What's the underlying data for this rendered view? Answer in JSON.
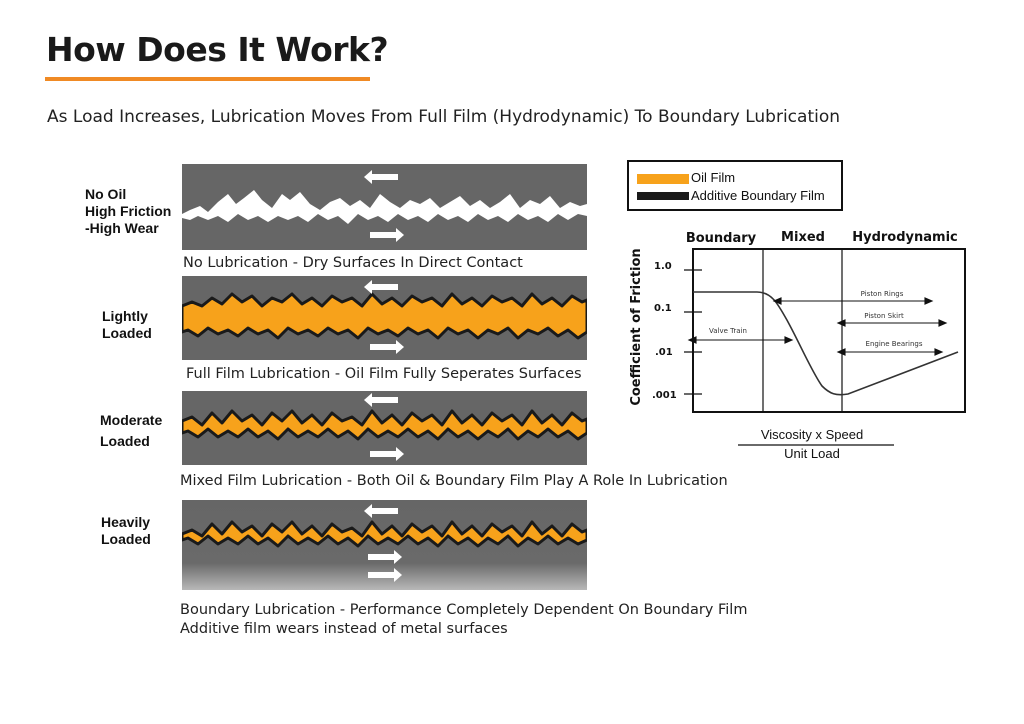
{
  "heading": {
    "title": "How Does It Work?",
    "subtitle": "As Load Increases, Lubrication Moves From Full Film (Hydrodynamic) To Boundary Lubrication",
    "accent_color": "#f08a24"
  },
  "regimes": [
    {
      "label_lines": [
        "No Oil",
        "High Friction",
        "-High Wear"
      ],
      "caption": "No Lubrication - Dry Surfaces In Direct Contact"
    },
    {
      "label_lines": [
        "Lightly",
        "Loaded"
      ],
      "caption": "Full Film Lubrication - Oil Film Fully Seperates Surfaces"
    },
    {
      "label_lines": [
        "Moderate",
        "Loaded"
      ],
      "caption": "Mixed Film Lubrication - Both Oil & Boundary Film Play A Role In Lubrication"
    },
    {
      "label_lines": [
        "Heavily",
        "Loaded"
      ],
      "caption": "Boundary Lubrication - Performance Completely Dependent On Boundary Film",
      "caption2": "Additive film wears instead of metal surfaces"
    }
  ],
  "legend": {
    "items": [
      {
        "label": "Oil Film",
        "color": "#f7a21b"
      },
      {
        "label": "Additive Boundary Film",
        "color": "#1a1a1a"
      }
    ]
  },
  "graph": {
    "regions": [
      "Boundary",
      "Mixed",
      "Hydrodynamic"
    ],
    "y_axis_label": "Coefficient of Friction",
    "y_ticks": [
      "1.0",
      "0.1",
      ".01",
      ".001"
    ],
    "x_label_numerator": "Viscosity x Speed",
    "x_label_denominator": "Unit Load",
    "ranges": [
      "Piston Rings",
      "Piston Skirt",
      "Valve Train",
      "Engine Bearings"
    ]
  },
  "colors": {
    "panel_gray": "#666666",
    "oil": "#f7a21b"
  }
}
